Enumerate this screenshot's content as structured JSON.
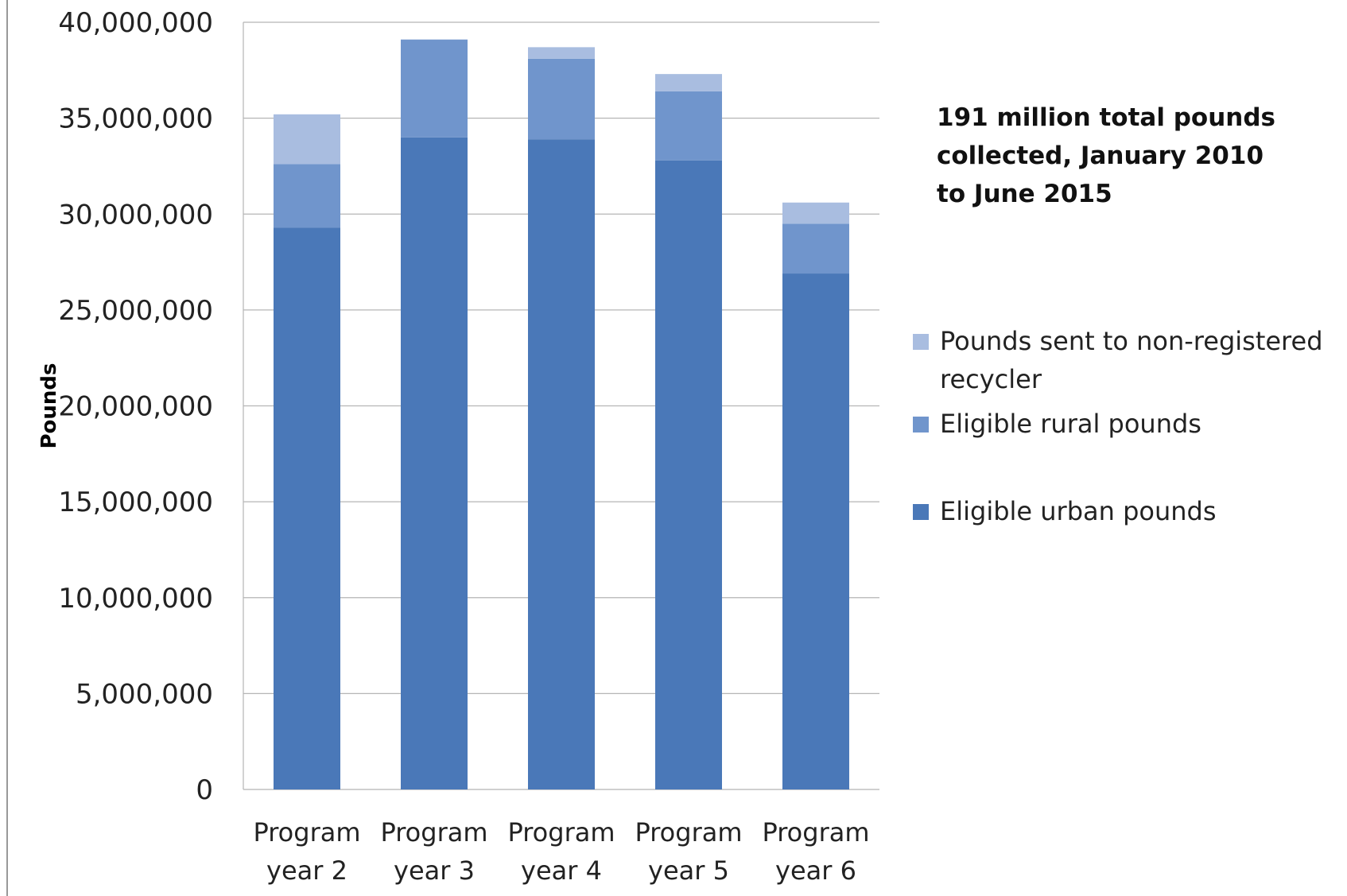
{
  "chart_data": {
    "type": "bar",
    "stacked": true,
    "categories": [
      "Program year 2",
      "Program year 3",
      "Program year 4",
      "Program year 5",
      "Program year 6"
    ],
    "category_lines": [
      [
        "Program",
        "year 2"
      ],
      [
        "Program",
        "year 3"
      ],
      [
        "Program",
        "year 4"
      ],
      [
        "Program",
        "year 5"
      ],
      [
        "Program",
        "year 6"
      ]
    ],
    "series": [
      {
        "name": "Eligible urban pounds",
        "color": "#4a78b8",
        "values": [
          29300000,
          34000000,
          33900000,
          32800000,
          26900000
        ]
      },
      {
        "name": "Eligible rural pounds",
        "color": "#7095cc",
        "values": [
          3300000,
          5100000,
          4200000,
          3600000,
          2600000
        ]
      },
      {
        "name": "Pounds sent to non-registered recycler",
        "color": "#a9bde0",
        "values": [
          2600000,
          0,
          600000,
          900000,
          1100000
        ]
      }
    ],
    "ylabel": "Pounds",
    "xlabel": "",
    "ylim": [
      0,
      40000000
    ],
    "yticks": [
      0,
      5000000,
      10000000,
      15000000,
      20000000,
      25000000,
      30000000,
      35000000,
      40000000
    ],
    "ytick_labels": [
      "0",
      "5,000,000",
      "10,000,000",
      "15,000,000",
      "20,000,000",
      "25,000,000",
      "30,000,000",
      "35,000,000",
      "40,000,000"
    ],
    "grid": true,
    "legend_position": "right",
    "legend": [
      {
        "lines": [
          "Pounds sent to non-registered",
          "recycler"
        ],
        "color": "#a9bde0"
      },
      {
        "lines": [
          "Eligible rural pounds"
        ],
        "color": "#7095cc"
      },
      {
        "lines": [
          "Eligible urban pounds"
        ],
        "color": "#4a78b8"
      }
    ],
    "annotation": [
      "191 million total pounds",
      "collected, January 2010",
      "to June 2015"
    ]
  }
}
